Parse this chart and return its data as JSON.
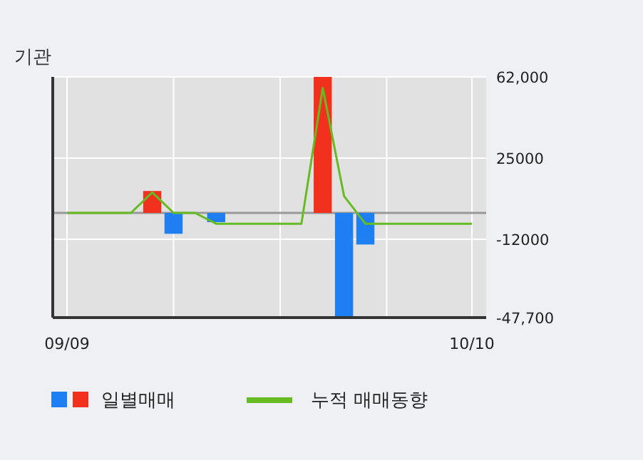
{
  "chart_data": {
    "type": "bar",
    "title": "기관",
    "categories": [
      "09/09",
      null,
      null,
      null,
      null,
      null,
      null,
      null,
      null,
      null,
      null,
      null,
      null,
      null,
      null,
      null,
      null,
      null,
      null,
      "10/10"
    ],
    "series": [
      {
        "name": "일별매매",
        "colors": [
          null,
          null,
          null,
          null,
          "#f2301e",
          "#1e7ff2",
          null,
          "#1e7ff2",
          null,
          null,
          null,
          null,
          "#f2301e",
          "#1e7ff2",
          "#1e7ff2",
          null,
          null,
          null,
          null,
          null
        ],
        "values": [
          null,
          null,
          null,
          null,
          10000,
          -9500,
          null,
          -4200,
          null,
          null,
          null,
          null,
          62000,
          -47500,
          -14400,
          null,
          null,
          null,
          null,
          null
        ]
      },
      {
        "name": "누적 매매동향",
        "type": "line",
        "color": "#66bb22",
        "values": [
          0,
          0,
          0,
          0,
          9400,
          0,
          0,
          -4900,
          -4900,
          -4900,
          -4900,
          -4900,
          57000,
          7700,
          -4900,
          -4900,
          -4900,
          -4900,
          -4900,
          -4900
        ]
      }
    ],
    "ylim": [
      -47700,
      62000
    ],
    "yticks": [
      {
        "value": 62000,
        "label": "62,000"
      },
      25000,
      -12000,
      {
        "value": -47700,
        "label": "-47,700"
      }
    ],
    "ref_lines": [
      {
        "axis": "y",
        "value": 0,
        "color": "#999999"
      }
    ],
    "grid": true,
    "legend": "bottom"
  }
}
